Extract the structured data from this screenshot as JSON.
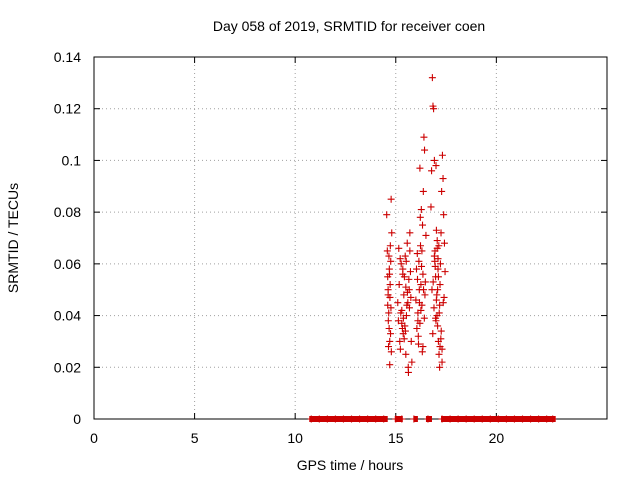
{
  "chart_data": {
    "type": "scatter",
    "title": "Day 058 of 2019, SRMTID for receiver coen",
    "xlabel": "GPS time / hours",
    "ylabel": "SRMTID / TECUs",
    "xlim": [
      0,
      25.5
    ],
    "ylim": [
      0,
      0.14
    ],
    "grid": true,
    "x_ticks": [
      0,
      5,
      10,
      15,
      20
    ],
    "x_tick_labels": [
      "0",
      "5",
      "10",
      "15",
      "20"
    ],
    "y_ticks": [
      0,
      0.02,
      0.04,
      0.06,
      0.08,
      0.1,
      0.12,
      0.14
    ],
    "y_tick_labels": [
      "0",
      "0.02",
      "0.04",
      "0.06",
      "0.08",
      "0.1",
      "0.12",
      "0.14"
    ],
    "marker": "+",
    "color": "#cc0000",
    "series": [
      {
        "name": "SRMTID",
        "x": [
          14.55,
          14.58,
          14.6,
          14.62,
          14.65,
          14.67,
          14.7,
          14.72,
          14.75,
          14.77,
          14.8,
          14.6,
          14.63,
          14.68,
          14.71,
          14.74,
          14.78,
          14.66,
          14.7,
          14.62,
          14.73,
          14.76,
          14.69,
          14.64,
          15.1,
          15.13,
          15.17,
          15.2,
          15.23,
          15.27,
          15.3,
          15.33,
          15.37,
          15.4,
          15.43,
          15.47,
          15.5,
          15.53,
          15.57,
          15.6,
          15.63,
          15.67,
          15.7,
          15.73,
          15.77,
          15.8,
          15.15,
          15.25,
          15.35,
          15.45,
          15.55,
          15.65,
          15.75,
          15.22,
          15.38,
          15.52,
          15.68,
          15.42,
          15.58,
          15.3,
          15.5,
          15.62,
          15.48,
          15.35,
          15.7,
          16.0,
          16.03,
          16.07,
          16.1,
          16.13,
          16.17,
          16.2,
          16.23,
          16.27,
          16.3,
          16.33,
          16.37,
          16.4,
          16.43,
          16.47,
          16.5,
          16.05,
          16.15,
          16.25,
          16.35,
          16.45,
          16.12,
          16.22,
          16.32,
          16.42,
          16.08,
          16.18,
          16.28,
          16.38,
          16.2,
          16.3,
          16.1,
          16.25,
          16.35,
          16.75,
          16.78,
          16.82,
          16.85,
          16.88,
          16.92,
          16.95,
          16.98,
          17.02,
          17.05,
          17.08,
          17.12,
          17.15,
          17.18,
          17.22,
          17.25,
          17.28,
          17.32,
          17.35,
          17.38,
          17.42,
          17.45,
          16.8,
          16.9,
          17.0,
          17.1,
          17.2,
          17.3,
          17.4,
          16.86,
          16.96,
          17.06,
          17.16,
          17.26,
          17.36,
          17.0,
          17.1,
          16.92,
          17.2,
          17.04,
          17.14,
          16.84,
          17.3,
          17.18,
          17.08,
          16.98,
          17.24,
          17.12,
          16.94,
          17.02,
          17.06,
          10.8,
          11.2,
          11.6,
          12.0,
          12.4,
          12.8,
          13.2,
          13.6,
          14.0,
          14.4,
          15.0,
          15.3,
          15.9,
          16.6,
          17.3,
          17.7,
          18.1,
          18.5,
          18.9,
          19.3,
          19.7,
          20.1,
          20.5,
          20.9,
          21.3,
          21.7,
          22.1,
          22.5,
          22.8
        ],
        "y": [
          0.079,
          0.065,
          0.055,
          0.048,
          0.041,
          0.035,
          0.03,
          0.052,
          0.061,
          0.085,
          0.072,
          0.044,
          0.038,
          0.058,
          0.047,
          0.033,
          0.026,
          0.063,
          0.021,
          0.05,
          0.067,
          0.043,
          0.056,
          0.028,
          0.045,
          0.038,
          0.052,
          0.03,
          0.027,
          0.06,
          0.042,
          0.035,
          0.033,
          0.048,
          0.055,
          0.063,
          0.025,
          0.04,
          0.068,
          0.045,
          0.018,
          0.05,
          0.072,
          0.057,
          0.03,
          0.022,
          0.066,
          0.041,
          0.058,
          0.036,
          0.044,
          0.054,
          0.047,
          0.062,
          0.039,
          0.061,
          0.043,
          0.031,
          0.049,
          0.037,
          0.051,
          0.02,
          0.034,
          0.056,
          0.065,
          0.046,
          0.058,
          0.064,
          0.038,
          0.029,
          0.05,
          0.097,
          0.067,
          0.081,
          0.044,
          0.075,
          0.088,
          0.109,
          0.104,
          0.053,
          0.071,
          0.035,
          0.061,
          0.042,
          0.056,
          0.048,
          0.032,
          0.078,
          0.026,
          0.039,
          0.054,
          0.045,
          0.059,
          0.05,
          0.037,
          0.065,
          0.041,
          0.052,
          0.028,
          0.082,
          0.096,
          0.132,
          0.121,
          0.12,
          0.1,
          0.065,
          0.055,
          0.046,
          0.04,
          0.036,
          0.03,
          0.025,
          0.02,
          0.06,
          0.072,
          0.088,
          0.102,
          0.093,
          0.079,
          0.068,
          0.057,
          0.05,
          0.043,
          0.038,
          0.062,
          0.028,
          0.022,
          0.047,
          0.053,
          0.059,
          0.069,
          0.041,
          0.034,
          0.045,
          0.098,
          0.058,
          0.063,
          0.052,
          0.048,
          0.067,
          0.033,
          0.027,
          0.044,
          0.05,
          0.039,
          0.031,
          0.055,
          0.061,
          0.073,
          0.066,
          0,
          0,
          0,
          0,
          0,
          0,
          0,
          0,
          0,
          0,
          0,
          0,
          0,
          0,
          0,
          0,
          0,
          0,
          0,
          0,
          0,
          0,
          0,
          0,
          0,
          0,
          0,
          0,
          0
        ]
      }
    ],
    "zero_segments": [
      [
        10.7,
        14.6
      ],
      [
        14.95,
        15.35
      ],
      [
        15.9,
        16.1
      ],
      [
        16.5,
        16.8
      ],
      [
        17.25,
        22.95
      ]
    ]
  }
}
